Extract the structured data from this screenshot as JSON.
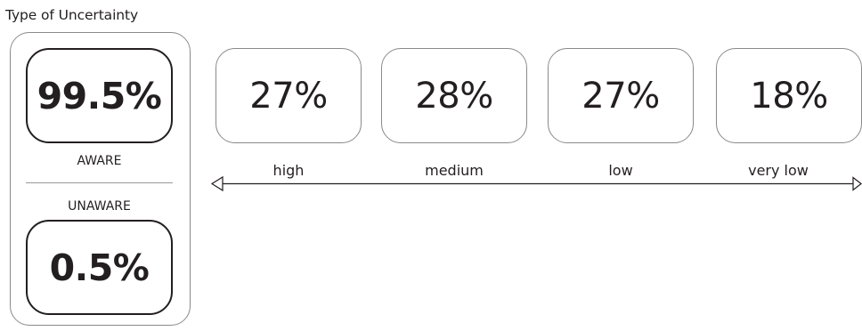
{
  "title": "Type of Uncertainty",
  "awareness": {
    "aware": {
      "value": "99.5%",
      "label": "AWARE"
    },
    "unaware": {
      "value": "0.5%",
      "label": "UNAWARE"
    }
  },
  "levels": [
    {
      "value": "27%",
      "label": "high"
    },
    {
      "value": "28%",
      "label": "medium"
    },
    {
      "value": "27%",
      "label": "low"
    },
    {
      "value": "18%",
      "label": "very low"
    }
  ],
  "colors": {
    "text": "#231f20",
    "border": "#8a8a8a"
  }
}
